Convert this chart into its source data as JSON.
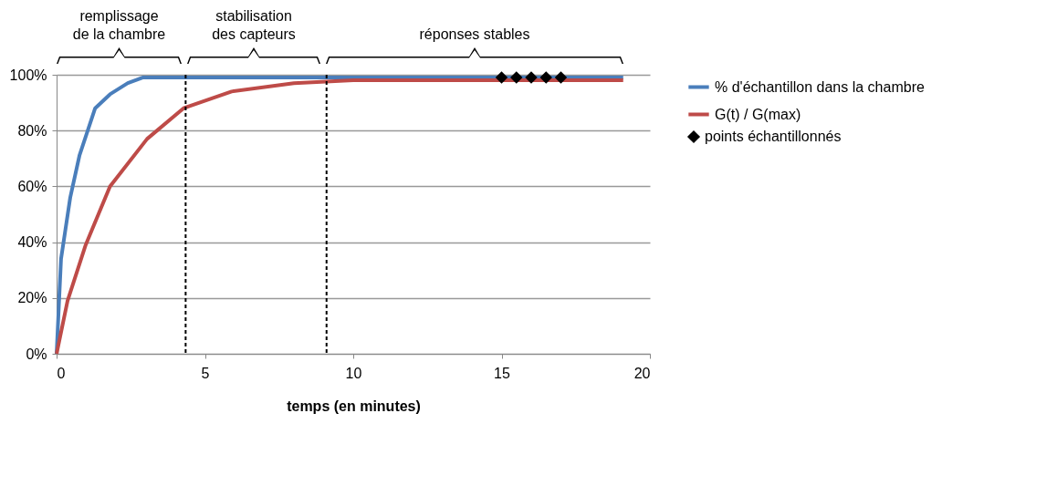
{
  "chart_data": {
    "type": "line",
    "xlabel": "temps (en minutes)",
    "xlim": [
      0,
      20
    ],
    "xticks": [
      0,
      5,
      10,
      15,
      20
    ],
    "ylim": [
      0,
      100
    ],
    "yticks": [
      {
        "value": 0,
        "label": "0%"
      },
      {
        "value": 20,
        "label": "20%"
      },
      {
        "value": 40,
        "label": "40%"
      },
      {
        "value": 60,
        "label": "60%"
      },
      {
        "value": 80,
        "label": "80%"
      },
      {
        "value": 100,
        "label": "100%"
      }
    ],
    "grid": "y",
    "legend": "right",
    "line_style": "solid",
    "marker": "none",
    "series": [
      {
        "name": "% d'échantillon dans  la chambre",
        "color": "#4a7ebb",
        "x": [
          0,
          0.15,
          0.46,
          0.77,
          1.3,
          1.8,
          2.4,
          2.9,
          4,
          10,
          19.1
        ],
        "values": [
          0,
          34,
          56,
          71,
          88,
          93,
          97,
          99,
          99,
          99,
          99
        ]
      },
      {
        "name": "G(t) / G(max)",
        "color": "#be4b48",
        "x": [
          0,
          0.37,
          0.98,
          1.8,
          3.05,
          4.28,
          5.9,
          8,
          10,
          19.1
        ],
        "values": [
          0,
          19,
          39,
          60,
          77,
          88,
          94,
          97,
          98,
          98
        ]
      },
      {
        "name": "points échantillonnés",
        "type": "scatter",
        "marker": "diamond",
        "color": "#000000",
        "x": [
          15,
          15.5,
          16,
          16.5,
          17
        ],
        "values": [
          99,
          99,
          99,
          99,
          99
        ]
      }
    ],
    "ref_lines": [
      {
        "axis": "x",
        "value": 4.35,
        "color": "#000000",
        "line_style": "dashed"
      },
      {
        "axis": "x",
        "value": 9.1,
        "color": "#000000",
        "line_style": "dashed"
      }
    ],
    "annotations": [
      "remplissage\nde la chambre",
      "stabilisation\ndes capteurs",
      "réponses stables"
    ]
  }
}
